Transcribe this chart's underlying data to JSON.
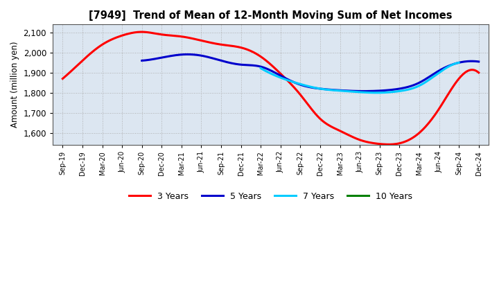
{
  "title": "[7949]  Trend of Mean of 12-Month Moving Sum of Net Incomes",
  "ylabel": "Amount (million yen)",
  "background_color": "#ffffff",
  "plot_background": "#dce6f1",
  "xlim_start": -0.5,
  "xlim_end": 21.5,
  "ylim": [
    1540,
    2140
  ],
  "yticks": [
    1600,
    1700,
    1800,
    1900,
    2000,
    2100
  ],
  "x_labels": [
    "Sep-19",
    "Dec-19",
    "Mar-20",
    "Jun-20",
    "Sep-20",
    "Dec-20",
    "Mar-21",
    "Jun-21",
    "Sep-21",
    "Dec-21",
    "Mar-22",
    "Jun-22",
    "Sep-22",
    "Dec-22",
    "Mar-23",
    "Jun-23",
    "Sep-23",
    "Dec-23",
    "Mar-24",
    "Jun-24",
    "Sep-24",
    "Dec-24"
  ],
  "series": {
    "3 Years": {
      "color": "#ff0000",
      "linewidth": 2.2,
      "y": [
        1870,
        1960,
        2040,
        2085,
        2103,
        2090,
        2080,
        2060,
        2040,
        2025,
        1980,
        1895,
        1790,
        1670,
        1610,
        1565,
        1545,
        1548,
        1600,
        1720,
        1870,
        1900
      ]
    },
    "5 Years": {
      "color": "#0000cc",
      "linewidth": 2.2,
      "y": [
        null,
        null,
        null,
        null,
        1960,
        1975,
        1990,
        1985,
        1960,
        1940,
        1930,
        1885,
        1840,
        1820,
        1812,
        1808,
        1810,
        1820,
        1850,
        1910,
        1950,
        1955
      ]
    },
    "7 Years": {
      "color": "#00ccff",
      "linewidth": 2.2,
      "y": [
        null,
        null,
        null,
        null,
        null,
        null,
        null,
        null,
        null,
        null,
        1922,
        1875,
        1843,
        1820,
        1810,
        1803,
        1800,
        1808,
        1835,
        1900,
        1950,
        null
      ]
    },
    "10 Years": {
      "color": "#008000",
      "linewidth": 2.2,
      "y": [
        null,
        null,
        null,
        null,
        null,
        null,
        null,
        null,
        null,
        null,
        null,
        null,
        null,
        null,
        null,
        null,
        null,
        null,
        null,
        null,
        null,
        null
      ]
    }
  },
  "legend_order": [
    "3 Years",
    "5 Years",
    "7 Years",
    "10 Years"
  ],
  "grid_color": "#aaaaaa",
  "grid_style": ":"
}
